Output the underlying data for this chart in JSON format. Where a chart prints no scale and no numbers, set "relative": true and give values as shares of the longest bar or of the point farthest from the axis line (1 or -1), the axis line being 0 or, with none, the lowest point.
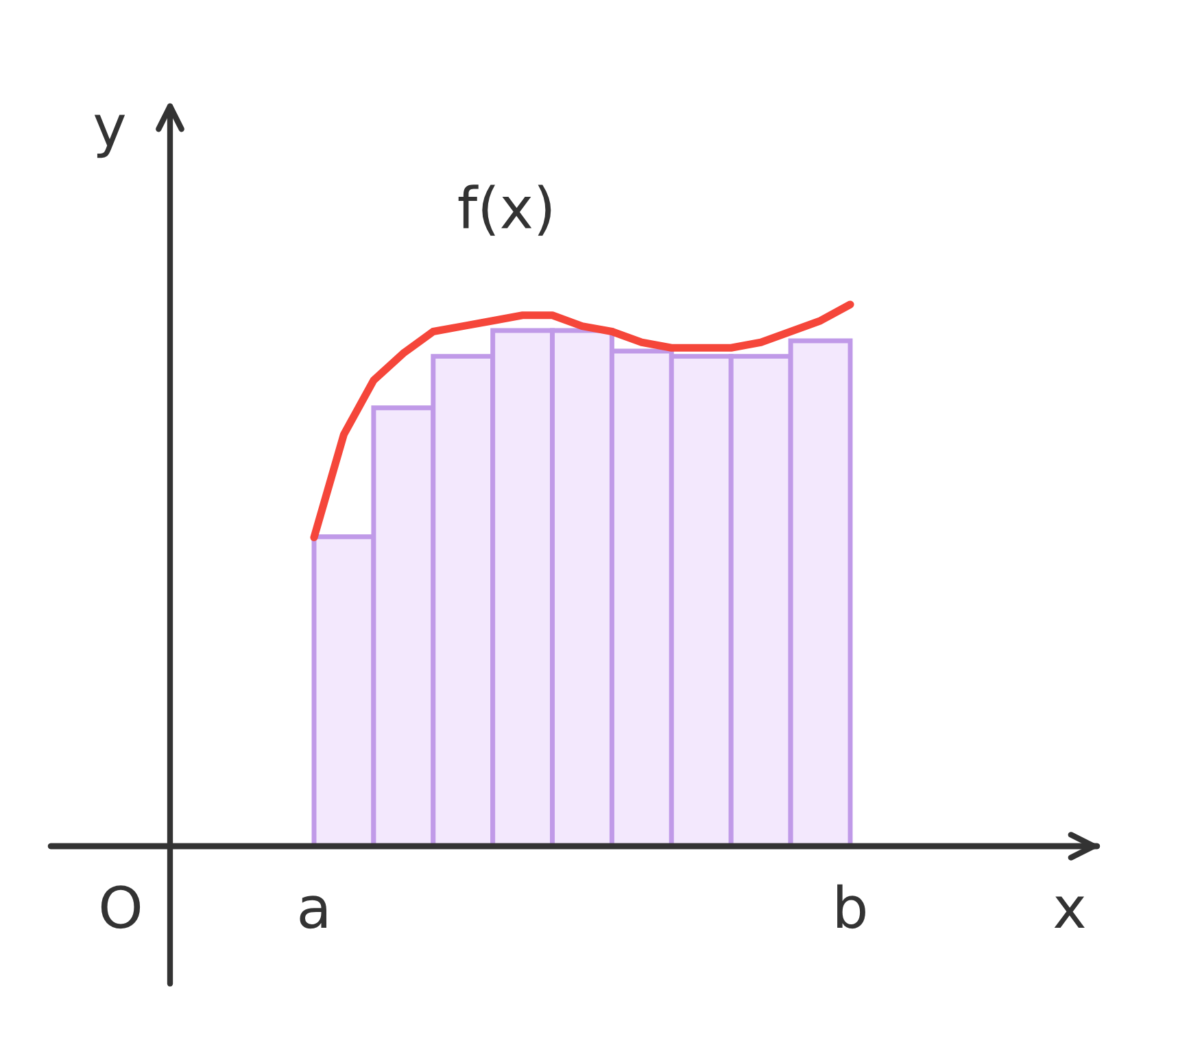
{
  "chart_data": [
    {
      "type": "bar",
      "relative": true,
      "xlabel": "x",
      "ylabel": "y",
      "color": "#f3e8fd",
      "categories": [
        null,
        null,
        null,
        null,
        null,
        null,
        null,
        null,
        null
      ],
      "values": [
        0.6,
        0.85,
        0.95,
        1.0,
        1.0,
        0.96,
        0.95,
        0.95,
        0.98
      ],
      "annotations": [
        "O",
        "a",
        "b"
      ]
    },
    {
      "type": "line",
      "relative": true,
      "categories": [
        null,
        null,
        null,
        null,
        null,
        null,
        null,
        null,
        null,
        null,
        null,
        null,
        null,
        null,
        null,
        null,
        null,
        null,
        null
      ],
      "series": [
        {
          "name": "f(x)",
          "color": "#f5463a",
          "values": [
            0.57,
            0.76,
            0.86,
            0.91,
            0.95,
            0.96,
            0.97,
            0.98,
            0.98,
            0.96,
            0.95,
            0.93,
            0.92,
            0.92,
            0.92,
            0.93,
            0.95,
            0.97,
            1.0
          ]
        }
      ]
    }
  ]
}
